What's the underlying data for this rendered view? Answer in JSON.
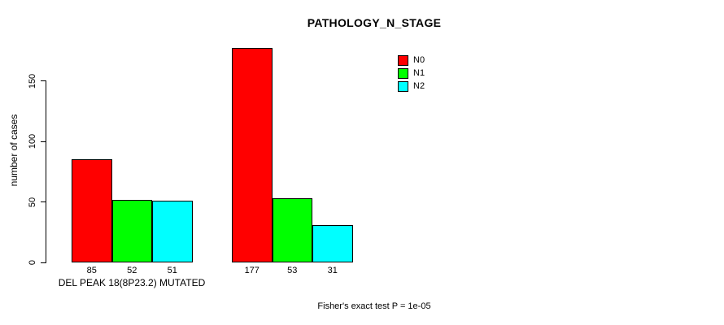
{
  "chart_data": {
    "type": "bar",
    "title": "PATHOLOGY_N_STAGE",
    "ylabel": "number of cases",
    "xlabel": "",
    "yticks": [
      0,
      50,
      100,
      150
    ],
    "ylim": [
      0,
      150
    ],
    "grid": false,
    "legend_position": "top-right",
    "axis_color": "#000000",
    "bar_border_color": "#000000",
    "text_color": "#000000",
    "background_color": "#ffffff",
    "series": [
      {
        "name": "N0",
        "color": "#FF0000"
      },
      {
        "name": "N1",
        "color": "#00FF00"
      },
      {
        "name": "N2",
        "color": "#00FFFF"
      }
    ],
    "groups": [
      {
        "label": "DEL PEAK 18(8P23.2) MUTATED",
        "values": [
          85,
          52,
          51
        ]
      },
      {
        "label": "",
        "values": [
          177,
          53,
          31
        ]
      }
    ],
    "footnote": "Fisher's exact test P = 1e-05"
  }
}
